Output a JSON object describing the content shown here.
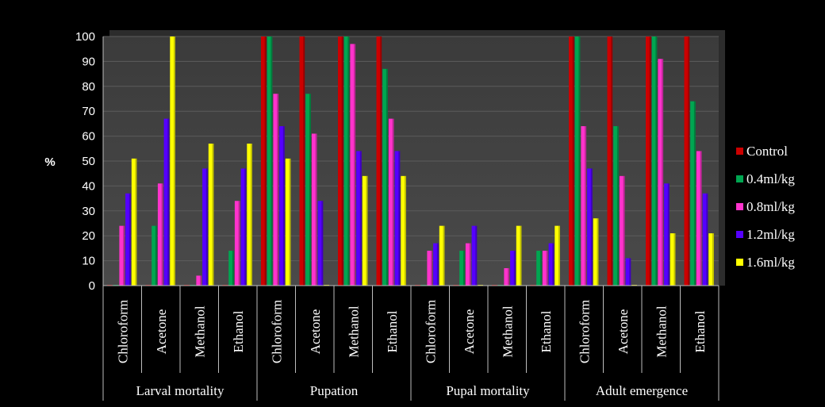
{
  "chart_data": {
    "type": "bar",
    "title": "",
    "xlabel": "",
    "ylabel": "%",
    "ylim": [
      0,
      100
    ],
    "yticks": [
      0,
      10,
      20,
      30,
      40,
      50,
      60,
      70,
      80,
      90,
      100
    ],
    "grid": true,
    "legend_position": "right",
    "groups": [
      {
        "name": "Larval mortality",
        "categories": [
          "Chloroform",
          "Acetone",
          "Methanol",
          "Ethanol"
        ]
      },
      {
        "name": "Pupation",
        "categories": [
          "Chloroform",
          "Acetone",
          "Methanol",
          "Ethanol"
        ]
      },
      {
        "name": "Pupal mortality",
        "categories": [
          "Chloroform",
          "Acetone",
          "Methanol",
          "Ethanol"
        ]
      },
      {
        "name": "Adult emergence",
        "categories": [
          "Chloroform",
          "Acetone",
          "Methanol",
          "Ethanol"
        ]
      }
    ],
    "series": [
      {
        "name": "Control",
        "color": "#cc0000",
        "values": [
          0,
          0,
          0,
          0,
          100,
          100,
          100,
          100,
          0,
          0,
          0,
          0,
          100,
          100,
          100,
          100
        ]
      },
      {
        "name": "0.4ml/kg",
        "color": "#00a651",
        "values": [
          0,
          24,
          0,
          14,
          100,
          77,
          100,
          87,
          0,
          14,
          0,
          14,
          100,
          64,
          100,
          74
        ]
      },
      {
        "name": "0.8ml/kg",
        "color": "#ff33cc",
        "values": [
          24,
          41,
          4,
          34,
          77,
          61,
          97,
          67,
          14,
          17,
          7,
          14,
          64,
          44,
          91,
          54
        ]
      },
      {
        "name": "1.2ml/kg",
        "color": "#5500ff",
        "values": [
          37,
          67,
          47,
          47,
          64,
          34,
          54,
          54,
          17,
          24,
          14,
          17,
          47,
          11,
          41,
          37
        ]
      },
      {
        "name": "1.6ml/kg",
        "color": "#ffff00",
        "values": [
          51,
          100,
          57,
          57,
          51,
          0,
          44,
          44,
          24,
          0,
          24,
          24,
          27,
          0,
          21,
          21
        ]
      }
    ]
  }
}
